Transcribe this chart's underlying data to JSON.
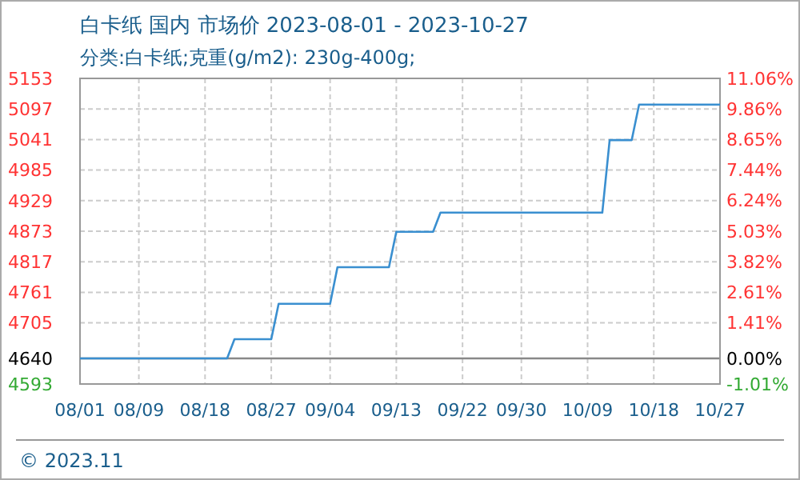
{
  "chart_data": {
    "type": "line",
    "title": "白卡纸 国内 市场价 2023-08-01 - 2023-10-27",
    "subtitle": "分类:白卡纸;克重(g/m2): 230g-400g;",
    "annotations": [
      "© 2023.11"
    ],
    "x": [
      "2023-08-01",
      "2023-08-21",
      "2023-08-22",
      "2023-08-27",
      "2023-08-28",
      "2023-09-04",
      "2023-09-05",
      "2023-09-12",
      "2023-09-13",
      "2023-09-18",
      "2023-09-19",
      "2023-10-11",
      "2023-10-12",
      "2023-10-15",
      "2023-10-16",
      "2023-10-27"
    ],
    "series": [
      {
        "color": "#3a8fd0",
        "values": [
          4640,
          4640,
          4675,
          4675,
          4740,
          4740,
          4807,
          4807,
          4872,
          4872,
          4907,
          4907,
          5040,
          5040,
          5105,
          5105
        ]
      }
    ],
    "xlim": [
      "2023-08-01",
      "2023-10-27"
    ],
    "xticks": [
      {
        "value": "2023-08-01",
        "label": "08/01"
      },
      {
        "value": "2023-08-09",
        "label": "08/09"
      },
      {
        "value": "2023-08-18",
        "label": "08/18"
      },
      {
        "value": "2023-08-27",
        "label": "08/27"
      },
      {
        "value": "2023-09-04",
        "label": "09/04"
      },
      {
        "value": "2023-09-13",
        "label": "09/13"
      },
      {
        "value": "2023-09-22",
        "label": "09/22"
      },
      {
        "value": "2023-09-30",
        "label": "09/30"
      },
      {
        "value": "2023-10-09",
        "label": "10/09"
      },
      {
        "value": "2023-10-18",
        "label": "10/18"
      },
      {
        "value": "2023-10-27",
        "label": "10/27"
      }
    ],
    "ylim": [
      4593,
      5153
    ],
    "yticks": [
      4593,
      4640,
      4705,
      4761,
      4817,
      4873,
      4929,
      4985,
      5041,
      5097,
      5153
    ],
    "y2lim": [
      -1.01,
      11.06
    ],
    "y2ticks": [
      {
        "value": -1.01,
        "label": "-1.01%"
      },
      {
        "value": 0,
        "label": "0.00%"
      },
      {
        "value": 1.41,
        "label": "1.41%"
      },
      {
        "value": 2.61,
        "label": "2.61%"
      },
      {
        "value": 3.82,
        "label": "3.82%"
      },
      {
        "value": 5.03,
        "label": "5.03%"
      },
      {
        "value": 6.24,
        "label": "6.24%"
      },
      {
        "value": 7.44,
        "label": "7.44%"
      },
      {
        "value": 8.65,
        "label": "8.65%"
      },
      {
        "value": 9.86,
        "label": "9.86%"
      },
      {
        "value": 11.06,
        "label": "11.06%"
      }
    ],
    "ref_lines": [
      {
        "axis": "y",
        "value": 4640,
        "color": "#888888"
      }
    ],
    "grid": true
  }
}
